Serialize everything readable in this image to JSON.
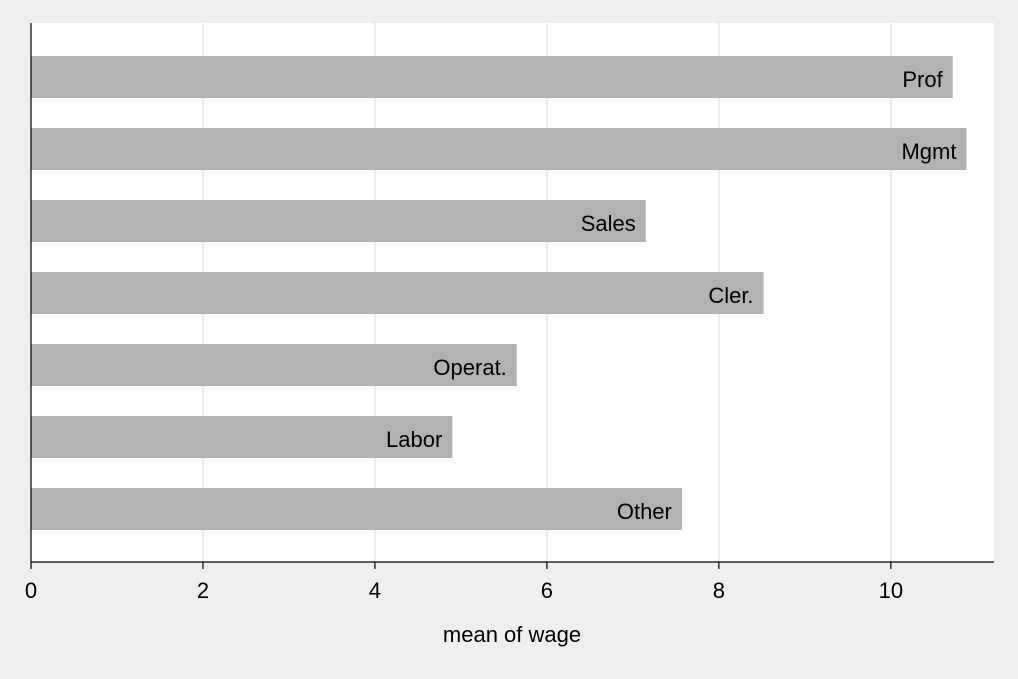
{
  "chart_data": {
    "type": "bar",
    "orientation": "horizontal",
    "categories": [
      "Prof",
      "Mgmt",
      "Sales",
      "Cler.",
      "Operat.",
      "Labor",
      "Other"
    ],
    "values": [
      10.72,
      10.88,
      7.15,
      8.52,
      5.65,
      4.9,
      7.57
    ],
    "title": "",
    "xlabel": "mean of wage",
    "ylabel": "",
    "xlim": [
      0,
      11.2
    ],
    "xticks": [
      0,
      2,
      4,
      6,
      8,
      10
    ],
    "grid": true,
    "legend": "none",
    "colors": {
      "bar": "#b2b2b2",
      "grid": "#e6e6e6",
      "plot_background": "#ffffff",
      "page_background": "#efefef",
      "axis": "#000000"
    }
  }
}
